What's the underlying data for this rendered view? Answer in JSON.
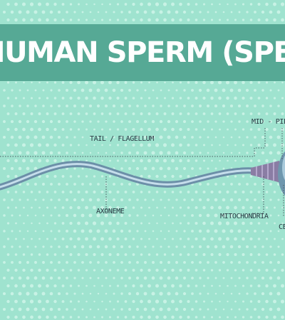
{
  "diagram": {
    "title": "HUMAN SPERM (SPERMATOZOA)",
    "labels": {
      "tail": "TAIL / FLAGELLUM",
      "midpiece": "MID - PIECE",
      "axoneme": "AXONEME",
      "mitochondria": "MITOCHONDRIA",
      "centriole": "CENTRIOLE"
    }
  },
  "colors": {
    "background": "#9FE3CF",
    "band": "#56A995",
    "title_text": "#FFFFFF",
    "dots": "#C8F2E5",
    "label_text": "#2B3B45",
    "leader_line": "#4A5A60",
    "tail_outer": "#6C8FA8",
    "tail_inner": "#C5DDEB",
    "midpiece": "#8A7DA4",
    "midpiece_band": "#B4A8CC",
    "head": "#6F97AE",
    "head_light": "#A9CADB"
  },
  "icons": [
    "sperm-cell-illustration"
  ]
}
